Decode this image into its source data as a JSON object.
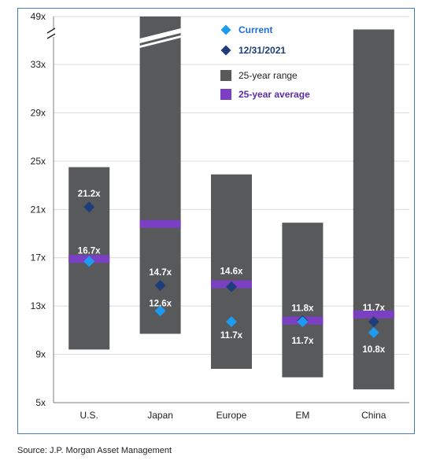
{
  "chart_data": {
    "type": "range-bar",
    "title": "",
    "xlabel": "",
    "ylabel": "",
    "ylim": [
      5,
      37
    ],
    "y_ticks": [
      "5x",
      "9x",
      "13x",
      "17x",
      "21x",
      "25x",
      "29x",
      "33x",
      "49x"
    ],
    "axis_break": true,
    "grid": true,
    "legend_position": "top-center",
    "categories": [
      "U.S.",
      "Japan",
      "Europe",
      "EM",
      "China"
    ],
    "range_low": [
      9.4,
      10.7,
      7.8,
      7.1,
      6.1
    ],
    "range_high": [
      24.5,
      49.0,
      23.9,
      19.9,
      35.9
    ],
    "range_high_label": [
      null,
      null,
      null,
      null,
      null
    ],
    "average": [
      16.9,
      19.8,
      14.8,
      11.8,
      12.3
    ],
    "series": [
      {
        "name": "Current",
        "values": [
          16.7,
          12.6,
          11.7,
          11.7,
          10.8
        ],
        "labels": [
          "16.7x",
          "12.6x",
          "11.7x",
          "11.7x",
          "10.8x"
        ]
      },
      {
        "name": "12/31/2021",
        "values": [
          21.2,
          14.7,
          14.6,
          11.8,
          11.7
        ],
        "labels": [
          "21.2x",
          "14.7x",
          "14.6x",
          "11.8x",
          "11.7x"
        ]
      }
    ],
    "legend": [
      {
        "label": "Current",
        "marker": "diamond",
        "color": "#1e9bf0"
      },
      {
        "label": "12/31/2021",
        "marker": "diamond",
        "color": "#1f3d7a"
      },
      {
        "label": "25-year range",
        "marker": "square",
        "color": "#58595b"
      },
      {
        "label": "25-year average",
        "marker": "square",
        "color": "#7b3fc4"
      }
    ],
    "colors": {
      "range": "#58595b",
      "average": "#7b3fc4",
      "current": "#1e9bf0",
      "prior": "#1f3d7a",
      "label": "#ffffff",
      "axis_text": "#222222",
      "legend_prior_text": "#1f3d7a",
      "legend_current_text": "#1e6fd0",
      "legend_range_text": "#222222",
      "legend_avg_text": "#5b2fa8"
    }
  },
  "source_text": "Source: J.P. Morgan Asset Management"
}
